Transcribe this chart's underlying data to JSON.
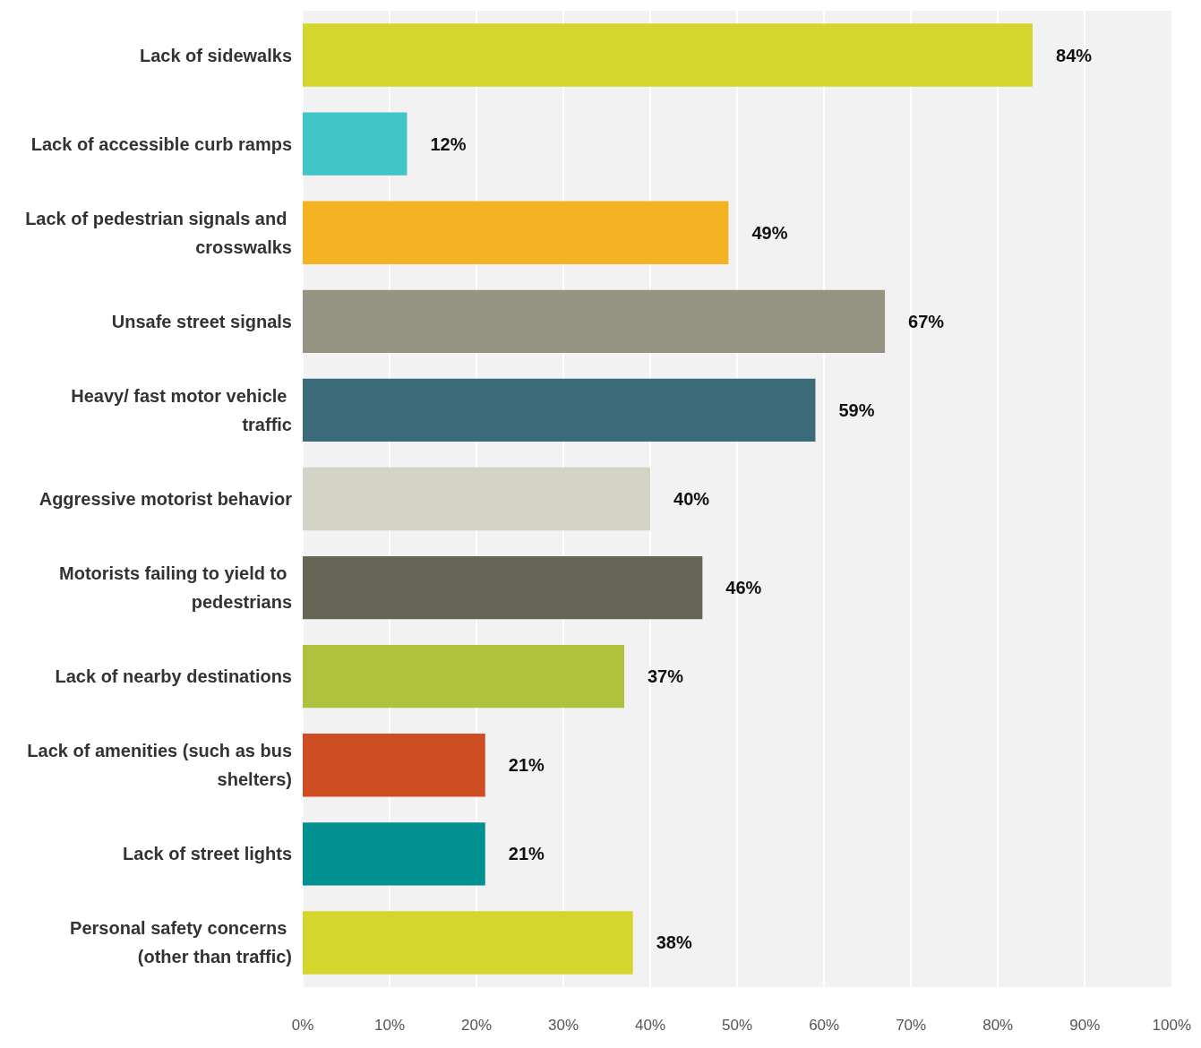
{
  "chart_data": {
    "type": "bar",
    "orientation": "horizontal",
    "categories": [
      "Lack of sidewalks",
      "Lack of accessible curb ramps",
      "Lack of pedestrian signals and crosswalks",
      "Unsafe street signals",
      "Heavy/ fast motor vehicle traffic",
      "Aggressive motorist behavior",
      "Motorists failing to yield to pedestrians",
      "Lack of nearby destinations",
      "Lack of amenities (such as bus shelters)",
      "Lack of street lights",
      "Personal safety concerns (other than traffic)"
    ],
    "values": [
      84,
      12,
      49,
      67,
      59,
      40,
      46,
      37,
      21,
      21,
      38
    ],
    "value_labels": [
      "84%",
      "12%",
      "49%",
      "67%",
      "59%",
      "40%",
      "46%",
      "37%",
      "21%",
      "21%",
      "38%"
    ],
    "colors": [
      "#d4d62e",
      "#40c4c6",
      "#f5b324",
      "#959482",
      "#3b6a78",
      "#d3d3c6",
      "#676555",
      "#b0c13e",
      "#cf4d22",
      "#00908f",
      "#d4d62e"
    ],
    "xlim": [
      0,
      100
    ],
    "xticks": [
      {
        "value": 0,
        "label": "0%"
      },
      {
        "value": 10,
        "label": "10%"
      },
      {
        "value": 20,
        "label": "20%"
      },
      {
        "value": 30,
        "label": "30%"
      },
      {
        "value": 40,
        "label": "40%"
      },
      {
        "value": 50,
        "label": "50%"
      },
      {
        "value": 60,
        "label": "60%"
      },
      {
        "value": 70,
        "label": "70%"
      },
      {
        "value": 80,
        "label": "80%"
      },
      {
        "value": 90,
        "label": "90%"
      },
      {
        "value": 100,
        "label": "100%"
      }
    ],
    "grid": "x"
  }
}
